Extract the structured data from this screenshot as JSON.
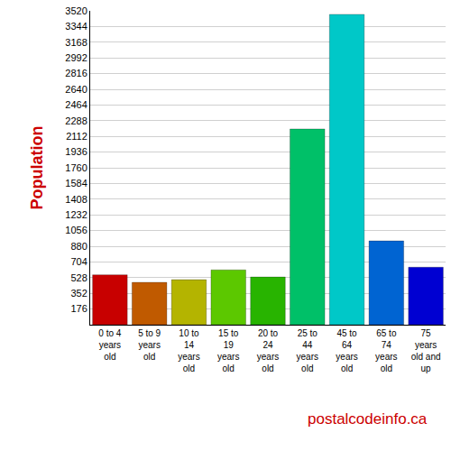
{
  "chart_data": {
    "type": "bar",
    "y_label": "Population",
    "categories": [
      "0 to 4 years old",
      "5 to 9 years old",
      "10 to 14 years old",
      "15 to 19 years old",
      "20 to 24 years old",
      "25 to 44 years old",
      "45 to 64 years old",
      "65 to 74 years old",
      "75 years old and up"
    ],
    "values": [
      560,
      475,
      505,
      615,
      535,
      2195,
      3480,
      940,
      645
    ],
    "colors": [
      "#c80000",
      "#c05a00",
      "#b4b400",
      "#5cc800",
      "#28b400",
      "#00c068",
      "#00c8c8",
      "#0064d2",
      "#0000d2"
    ],
    "ylim": [
      0,
      3520
    ],
    "yticks": [
      176,
      352,
      528,
      704,
      880,
      1056,
      1232,
      1408,
      1584,
      1760,
      1936,
      2112,
      2288,
      2464,
      2640,
      2816,
      2992,
      3168,
      3344,
      3520
    ],
    "grid": true,
    "footer": "postalcodeinfo.ca"
  }
}
